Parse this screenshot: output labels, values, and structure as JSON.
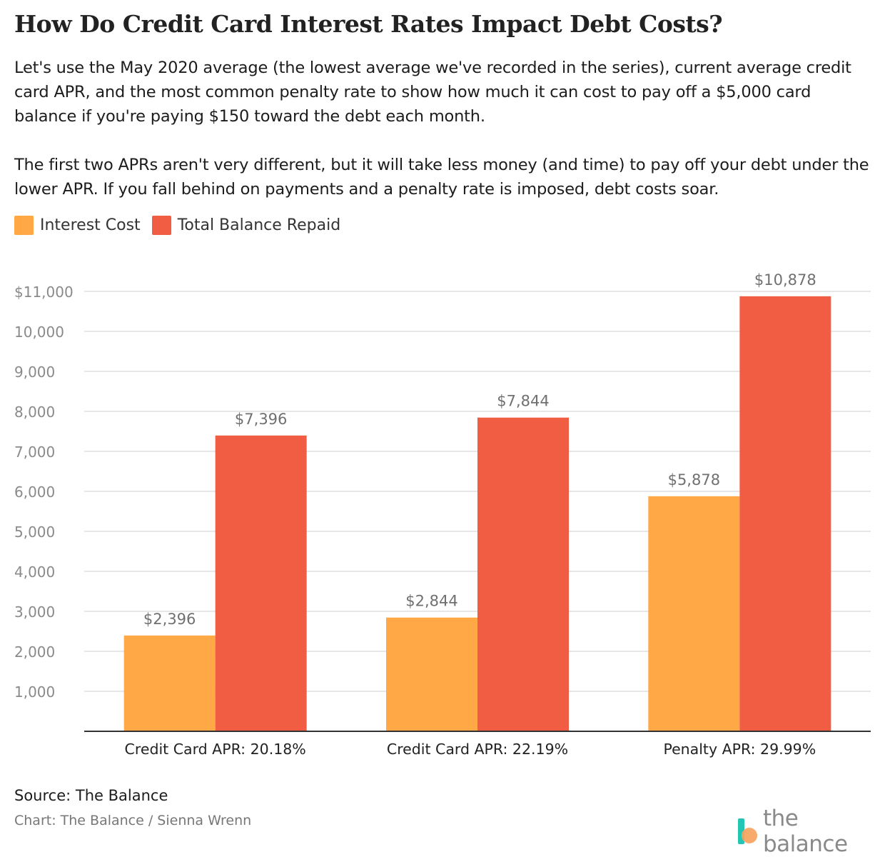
{
  "header": {
    "title": "How Do Credit Card Interest Rates Impact Debt Costs?",
    "paragraph1": "Let's use the May 2020 average (the lowest average we've recorded in the series), current average credit card APR, and the most common penalty rate to show how much it can cost to pay off a $5,000 card balance if you're paying $150 toward the debt each month.",
    "paragraph2": "The first two APRs aren't very different, but it will take less money (and time) to pay off your debt under the lower APR. If you fall behind on payments and a penalty rate is imposed, debt costs soar."
  },
  "chart_data": {
    "type": "bar",
    "categories": [
      "Credit Card APR: 20.18%",
      "Credit Card APR: 22.19%",
      "Penalty APR: 29.99%"
    ],
    "series": [
      {
        "name": "Interest Cost",
        "color": "#FFA845",
        "values": [
          2396,
          2844,
          5878
        ],
        "labels": [
          "$2,396",
          "$2,844",
          "$5,878"
        ]
      },
      {
        "name": "Total Balance Repaid",
        "color": "#F15D42",
        "values": [
          7396,
          7844,
          10878
        ],
        "labels": [
          "$7,396",
          "$7,844",
          "$10,878"
        ]
      }
    ],
    "ylim": [
      0,
      11000
    ],
    "yticks": [
      1000,
      2000,
      3000,
      4000,
      5000,
      6000,
      7000,
      8000,
      9000,
      10000,
      11000
    ],
    "ytick_labels": [
      "1,000",
      "2,000",
      "3,000",
      "4,000",
      "5,000",
      "6,000",
      "7,000",
      "8,000",
      "9,000",
      "10,000",
      "$11,000"
    ],
    "grid": true,
    "legend_position": "top-left",
    "xlabel": "",
    "ylabel": ""
  },
  "footer": {
    "source": "Source: The Balance",
    "credit": "Chart: The Balance / Sienna Wrenn",
    "logo_text": "the balance"
  }
}
